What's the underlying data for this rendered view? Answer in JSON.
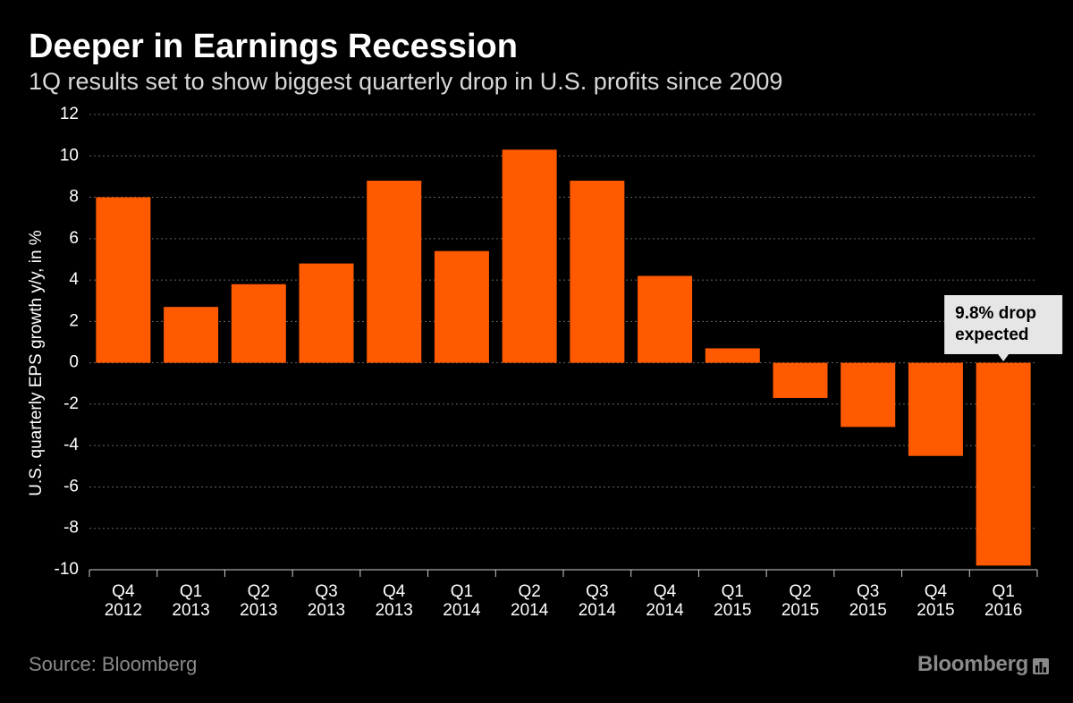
{
  "colors": {
    "background": "#000000",
    "bar": "#ff5a00",
    "grid": "#666666",
    "axis_text": "#ffffff",
    "callout_bg": "#e6e6e6",
    "callout_text": "#000000",
    "muted": "#8a8a8a"
  },
  "chart_data": {
    "type": "bar",
    "title": "Deeper in Earnings Recession",
    "subtitle": "1Q results set to show biggest quarterly drop in U.S. profits since 2009",
    "xlabel": "",
    "ylabel": "U.S. quarterly EPS growth y/y, in %",
    "ylim": [
      -10,
      12
    ],
    "yticks": [
      12,
      10,
      8,
      6,
      4,
      2,
      0,
      -2,
      -4,
      -6,
      -8,
      -10
    ],
    "grid": true,
    "categories": [
      [
        "Q4",
        "2012"
      ],
      [
        "Q1",
        "2013"
      ],
      [
        "Q2",
        "2013"
      ],
      [
        "Q3",
        "2013"
      ],
      [
        "Q4",
        "2013"
      ],
      [
        "Q1",
        "2014"
      ],
      [
        "Q2",
        "2014"
      ],
      [
        "Q3",
        "2014"
      ],
      [
        "Q4",
        "2014"
      ],
      [
        "Q1",
        "2015"
      ],
      [
        "Q2",
        "2015"
      ],
      [
        "Q3",
        "2015"
      ],
      [
        "Q4",
        "2015"
      ],
      [
        "Q1",
        "2016"
      ]
    ],
    "values": [
      8.0,
      2.7,
      3.8,
      4.8,
      8.8,
      5.4,
      10.3,
      8.8,
      4.2,
      0.7,
      -1.7,
      -3.1,
      -4.5,
      -9.8
    ],
    "annotation": {
      "category_index": 13,
      "lines": [
        "9.8% drop",
        "expected"
      ]
    }
  },
  "footer": {
    "source": "Source: Bloomberg",
    "brand": "Bloomberg",
    "brand_icon": "bloomberg-chart-icon"
  }
}
